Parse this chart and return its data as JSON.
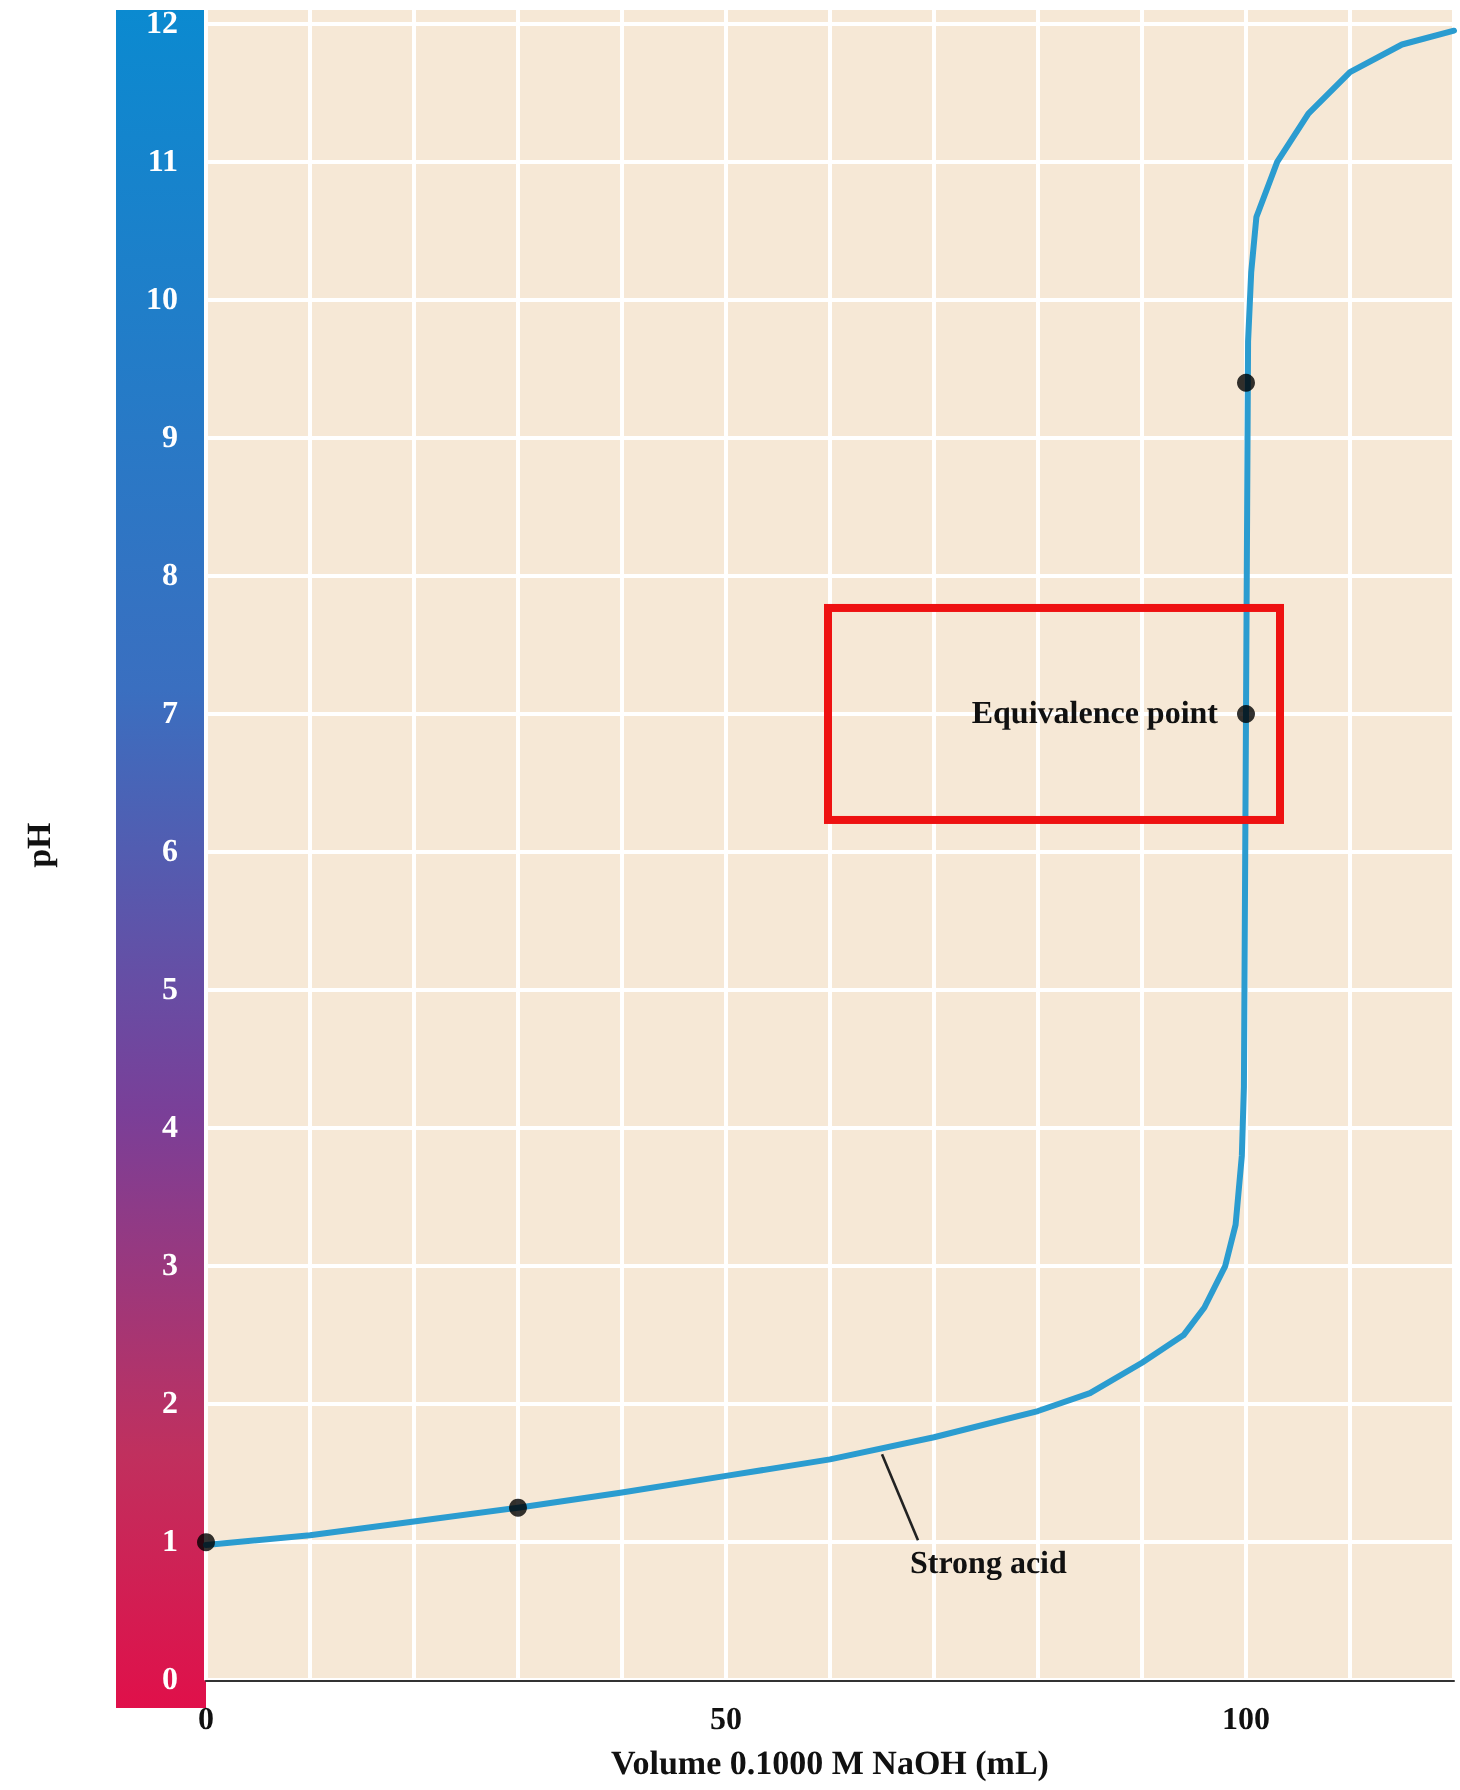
{
  "chart_data": {
    "type": "line",
    "xlabel": "Volume 0.1000 M NaOH (mL)",
    "ylabel": "pH",
    "xlim": [
      0,
      120
    ],
    "ylim": [
      0,
      12.1
    ],
    "xticks": [
      0,
      {
        "value": 10,
        "label": null
      },
      {
        "value": 20,
        "label": null
      },
      {
        "value": 30,
        "label": null
      },
      {
        "value": 40,
        "label": null
      },
      50,
      {
        "value": 60,
        "label": null
      },
      {
        "value": 70,
        "label": null
      },
      {
        "value": 80,
        "label": null
      },
      {
        "value": 90,
        "label": null
      },
      100,
      {
        "value": 110,
        "label": null
      },
      {
        "value": 120,
        "label": null
      }
    ],
    "yticks": [
      0,
      1,
      2,
      3,
      4,
      5,
      6,
      7,
      8,
      9,
      10,
      11,
      12
    ],
    "grid": true,
    "series": [
      {
        "type": "line",
        "color": "#2b9cd0",
        "marker": "none",
        "line_style": "solid",
        "x": [
          0,
          10,
          20,
          30,
          40,
          50,
          60,
          70,
          80,
          85,
          90,
          94,
          96,
          98,
          99,
          99.6,
          99.8,
          100,
          100.2,
          100.5,
          101,
          103,
          106,
          110,
          115,
          120
        ],
        "values": [
          0.98,
          1.05,
          1.15,
          1.25,
          1.36,
          1.48,
          1.6,
          1.76,
          1.95,
          2.08,
          2.3,
          2.5,
          2.7,
          3.0,
          3.3,
          3.8,
          4.3,
          7,
          9.7,
          10.2,
          10.6,
          11.0,
          11.35,
          11.65,
          11.85,
          11.95
        ]
      },
      {
        "type": "scatter",
        "color": "#000000",
        "marker": "circle",
        "x": [
          0,
          30,
          100,
          100
        ],
        "values": [
          1,
          1.25,
          7,
          9.4
        ]
      }
    ],
    "annotations": [
      {
        "text": "Equivalence point",
        "x": 100,
        "y": 7
      },
      {
        "text": "Strong acid",
        "x": 65,
        "y": 1.68
      }
    ]
  }
}
